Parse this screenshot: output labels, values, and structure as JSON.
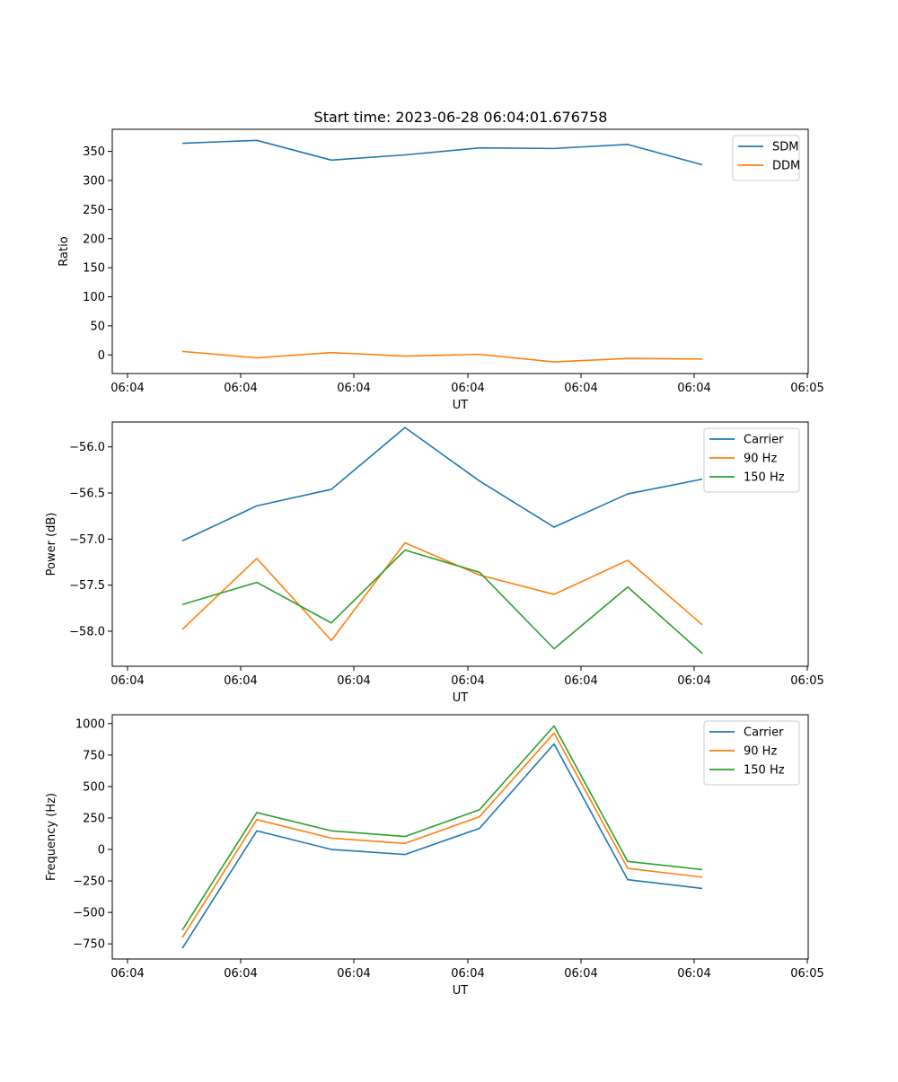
{
  "title": "Start time: 2023-06-28 06:04:01.676758",
  "colors": {
    "series1": "#1f77b4",
    "series2": "#ff7f0e",
    "series3": "#2ca02c"
  },
  "chart_data": [
    {
      "type": "line",
      "xlabel": "UT",
      "ylabel": "Ratio",
      "xticks": [
        "06:04",
        "06:04",
        "06:04",
        "06:04",
        "06:04",
        "06:04",
        "06:05"
      ],
      "yticks": [
        "0",
        "50",
        "100",
        "150",
        "200",
        "250",
        "300",
        "350"
      ],
      "ytick_values": [
        0,
        50,
        100,
        150,
        200,
        250,
        300,
        350
      ],
      "ylim": [
        -32,
        388
      ],
      "x_index": [
        0,
        1,
        2,
        3,
        4,
        5,
        6,
        7
      ],
      "legend_loc": "upper right",
      "series": [
        {
          "name": "SDM",
          "color": "#1f77b4",
          "values": [
            364,
            369,
            335,
            344,
            356,
            355,
            362,
            327
          ]
        },
        {
          "name": "DDM",
          "color": "#ff7f0e",
          "values": [
            6,
            -5,
            4,
            -2,
            1,
            -12,
            -6,
            -7
          ]
        }
      ]
    },
    {
      "type": "line",
      "xlabel": "UT",
      "ylabel": "Power (dB)",
      "xticks": [
        "06:04",
        "06:04",
        "06:04",
        "06:04",
        "06:04",
        "06:04",
        "06:05"
      ],
      "yticks": [
        "−58.0",
        "−57.5",
        "−57.0",
        "−56.5",
        "−56.0"
      ],
      "ytick_values": [
        -58.0,
        -57.5,
        -57.0,
        -56.5,
        -56.0
      ],
      "ylim": [
        -58.38,
        -55.73
      ],
      "x_index": [
        0,
        1,
        2,
        3,
        4,
        5,
        6,
        7
      ],
      "legend_loc": "upper right",
      "series": [
        {
          "name": "Carrier",
          "color": "#1f77b4",
          "values": [
            -57.02,
            -56.64,
            -56.46,
            -55.79,
            -56.37,
            -56.87,
            -56.51,
            -56.35
          ]
        },
        {
          "name": "90 Hz",
          "color": "#ff7f0e",
          "values": [
            -57.98,
            -57.21,
            -58.1,
            -57.04,
            -57.39,
            -57.6,
            -57.23,
            -57.93
          ]
        },
        {
          "name": "150 Hz",
          "color": "#2ca02c",
          "values": [
            -57.71,
            -57.47,
            -57.91,
            -57.12,
            -57.36,
            -58.19,
            -57.52,
            -58.24
          ]
        }
      ]
    },
    {
      "type": "line",
      "xlabel": "UT",
      "ylabel": "Frequency (Hz)",
      "xticks": [
        "06:04",
        "06:04",
        "06:04",
        "06:04",
        "06:04",
        "06:04",
        "06:05"
      ],
      "yticks": [
        "−750",
        "−500",
        "−250",
        "0",
        "250",
        "500",
        "750",
        "1000"
      ],
      "ytick_values": [
        -750,
        -500,
        -250,
        0,
        250,
        500,
        750,
        1000
      ],
      "ylim": [
        -870,
        1070
      ],
      "x_index": [
        0,
        1,
        2,
        3,
        4,
        5,
        6,
        7
      ],
      "legend_loc": "upper right",
      "series": [
        {
          "name": "Carrier",
          "color": "#1f77b4",
          "values": [
            -785,
            148,
            0,
            -40,
            168,
            838,
            -240,
            -310
          ]
        },
        {
          "name": "90 Hz",
          "color": "#ff7f0e",
          "values": [
            -700,
            237,
            90,
            48,
            260,
            925,
            -150,
            -220
          ]
        },
        {
          "name": "150 Hz",
          "color": "#2ca02c",
          "values": [
            -640,
            293,
            148,
            103,
            316,
            981,
            -95,
            -160
          ]
        }
      ]
    }
  ]
}
